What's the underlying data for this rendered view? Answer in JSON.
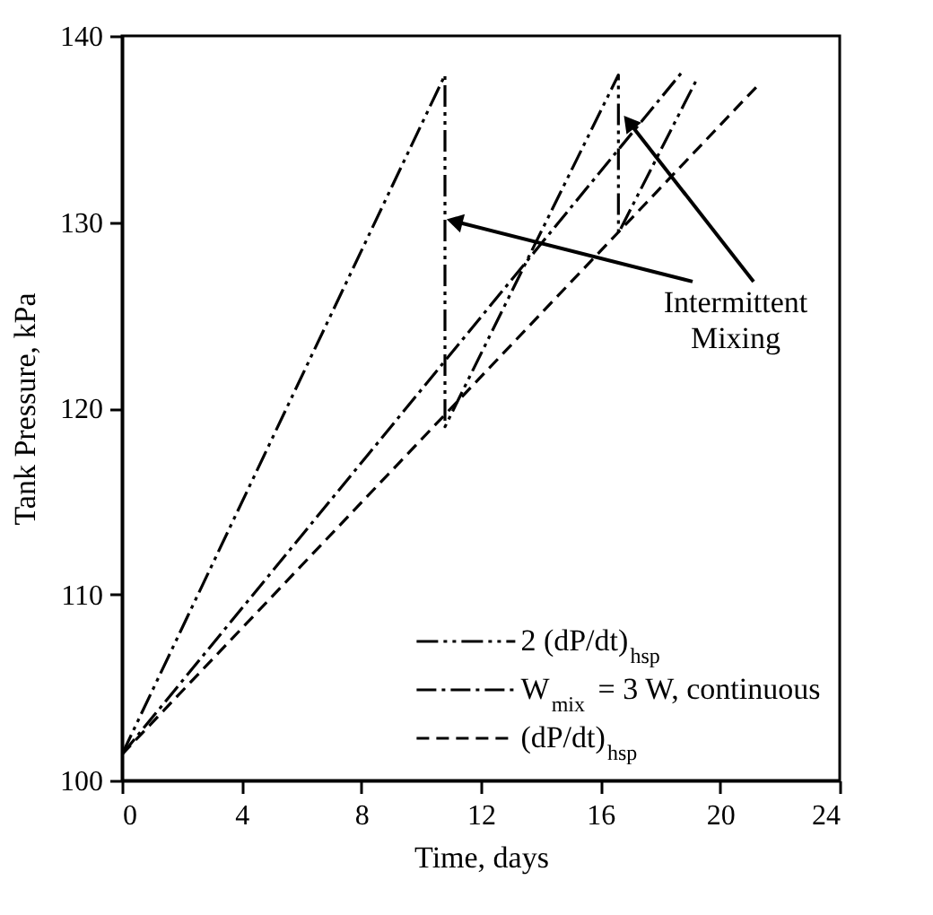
{
  "chart_data": {
    "type": "line",
    "xlabel": "Time, days",
    "ylabel": "Tank Pressure, kPa",
    "xlim": [
      0,
      24
    ],
    "xticks": [
      0,
      4,
      8,
      12,
      16,
      20,
      24
    ],
    "ylim": [
      100,
      140
    ],
    "yticks": [
      100,
      110,
      120,
      130,
      140
    ],
    "grid": false,
    "legend": "bottom right",
    "marker": "none",
    "series": [
      {
        "name": "2 (dP/dt)$_{hsp}$",
        "color": "#000000",
        "line_style": "dashdotdot",
        "x": [
          0,
          10.8,
          10.8,
          16.6,
          16.6,
          19.2
        ],
        "values": [
          101.4,
          137.9,
          119.0,
          137.9,
          129.4,
          137.6
        ]
      },
      {
        "name": "W$_{mix}$ = 3 W, continuous",
        "color": "#000000",
        "line_style": "dashdot",
        "x": [
          0,
          18.7
        ],
        "values": [
          101.4,
          138.0
        ]
      },
      {
        "name": "(dP/dt)$_{hsp}$",
        "color": "#000000",
        "line_style": "dashed",
        "x": [
          0,
          21.3
        ],
        "values": [
          101.4,
          137.4
        ]
      }
    ],
    "annotations": [
      {
        "text": "Intermittent Mixing",
        "x": 10.8,
        "y": 130
      }
    ]
  }
}
